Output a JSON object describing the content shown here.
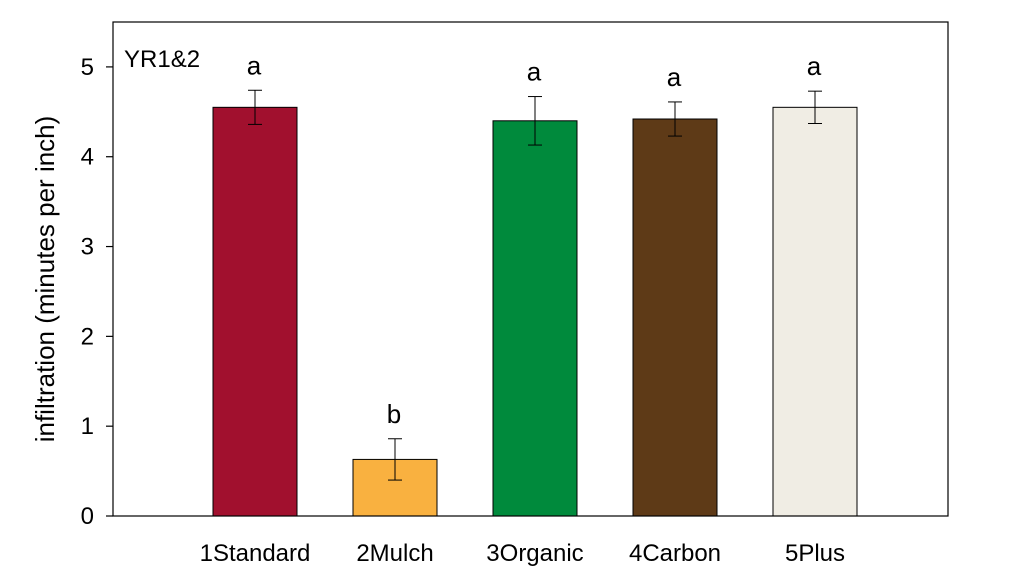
{
  "chart_data": {
    "type": "bar",
    "panel_label": "YR1&2",
    "ylabel": "infiltration (minutes per inch)",
    "xlabel": "",
    "ylim": [
      0,
      5.5
    ],
    "yticks": [
      "0",
      "1",
      "2",
      "3",
      "4",
      "5"
    ],
    "categories": [
      "1Standard",
      "2Mulch",
      "3Organic",
      "4Carbon",
      "5Plus"
    ],
    "values": [
      4.55,
      0.63,
      4.4,
      4.42,
      4.55
    ],
    "errors": [
      0.19,
      0.23,
      0.27,
      0.19,
      0.18
    ],
    "significance": [
      "a",
      "b",
      "a",
      "a",
      "a"
    ],
    "colors": [
      "#A1102E",
      "#F9B140",
      "#008A3C",
      "#5E3A17",
      "#F0EDE4"
    ]
  }
}
